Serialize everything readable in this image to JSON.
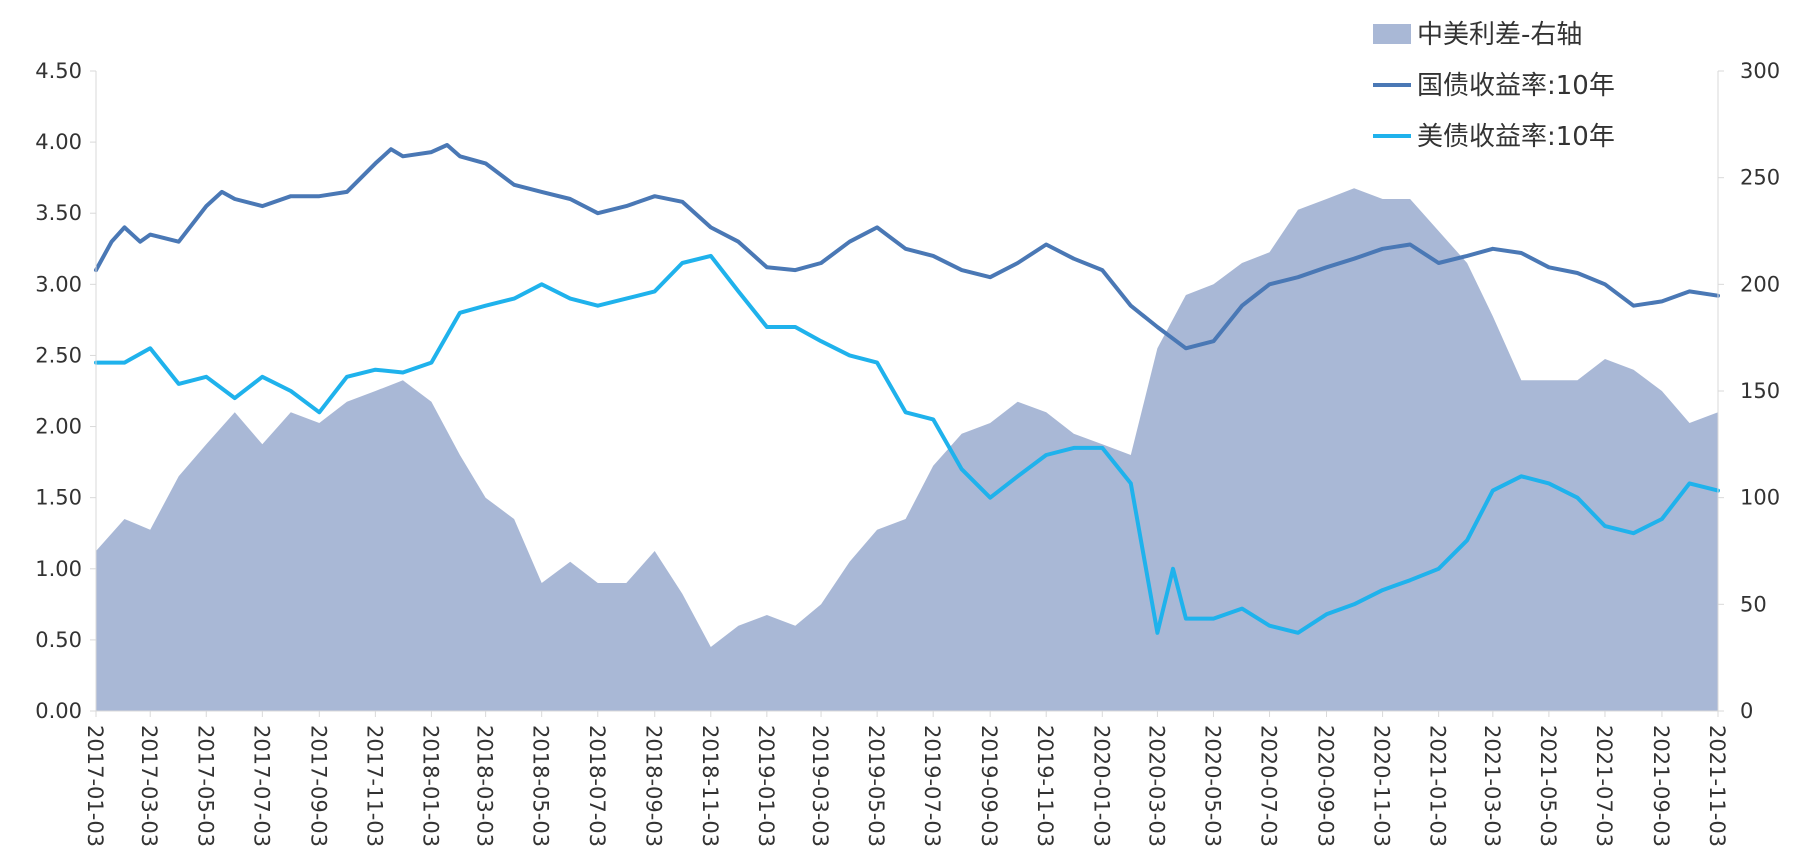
{
  "chart_data": {
    "type": "area+line",
    "legend": [
      {
        "key": "spread",
        "label": "中美利差-右轴",
        "kind": "area",
        "color": "#a9b8d6"
      },
      {
        "key": "cn10y",
        "label": "国债收益率:10年",
        "kind": "line",
        "color": "#4a78b5"
      },
      {
        "key": "us10y",
        "label": "美债收益率:10年",
        "kind": "line",
        "color": "#1fb2ec"
      }
    ],
    "legend_position": "top-right",
    "y_left": {
      "min": 0,
      "max": 4.5,
      "ticks": [
        "0.00",
        "0.50",
        "1.00",
        "1.50",
        "2.00",
        "2.50",
        "3.00",
        "3.50",
        "4.00",
        "4.50"
      ]
    },
    "y_right": {
      "min": 0,
      "max": 300,
      "ticks": [
        "0",
        "50",
        "100",
        "150",
        "200",
        "250",
        "300"
      ]
    },
    "x_labels": [
      "2017-01-03",
      "2017-03-03",
      "2017-05-03",
      "2017-07-03",
      "2017-09-03",
      "2017-11-03",
      "2018-01-03",
      "2018-03-03",
      "2018-05-03",
      "2018-07-03",
      "2018-09-03",
      "2018-11-03",
      "2019-01-03",
      "2019-03-03",
      "2019-05-03",
      "2019-07-03",
      "2019-09-03",
      "2019-11-03",
      "2020-01-03",
      "2020-03-03",
      "2020-05-03",
      "2020-07-03",
      "2020-09-03",
      "2020-11-03",
      "2021-01-03",
      "2021-03-03",
      "2021-05-03",
      "2021-07-03",
      "2021-09-03",
      "2021-11-03"
    ],
    "x_range": [
      "2017-01-03",
      "2021-11-03"
    ],
    "grid": false,
    "series": [
      {
        "name": "中美利差-右轴",
        "axis": "right",
        "points": [
          [
            "2017-01-03",
            75
          ],
          [
            "2017-02-03",
            90
          ],
          [
            "2017-03-03",
            85
          ],
          [
            "2017-04-03",
            110
          ],
          [
            "2017-05-03",
            125
          ],
          [
            "2017-06-03",
            140
          ],
          [
            "2017-07-03",
            125
          ],
          [
            "2017-08-03",
            140
          ],
          [
            "2017-09-03",
            135
          ],
          [
            "2017-10-03",
            145
          ],
          [
            "2017-11-03",
            150
          ],
          [
            "2017-12-03",
            155
          ],
          [
            "2018-01-03",
            145
          ],
          [
            "2018-02-03",
            120
          ],
          [
            "2018-03-03",
            100
          ],
          [
            "2018-04-03",
            90
          ],
          [
            "2018-05-03",
            60
          ],
          [
            "2018-06-03",
            70
          ],
          [
            "2018-07-03",
            60
          ],
          [
            "2018-08-03",
            60
          ],
          [
            "2018-09-03",
            75
          ],
          [
            "2018-10-03",
            55
          ],
          [
            "2018-11-03",
            30
          ],
          [
            "2018-12-03",
            40
          ],
          [
            "2019-01-03",
            45
          ],
          [
            "2019-02-03",
            40
          ],
          [
            "2019-03-03",
            50
          ],
          [
            "2019-04-03",
            70
          ],
          [
            "2019-05-03",
            85
          ],
          [
            "2019-06-03",
            90
          ],
          [
            "2019-07-03",
            115
          ],
          [
            "2019-08-03",
            130
          ],
          [
            "2019-09-03",
            135
          ],
          [
            "2019-10-03",
            145
          ],
          [
            "2019-11-03",
            140
          ],
          [
            "2019-12-03",
            130
          ],
          [
            "2020-01-03",
            125
          ],
          [
            "2020-02-03",
            120
          ],
          [
            "2020-03-03",
            170
          ],
          [
            "2020-04-03",
            195
          ],
          [
            "2020-05-03",
            200
          ],
          [
            "2020-06-03",
            210
          ],
          [
            "2020-07-03",
            215
          ],
          [
            "2020-08-03",
            235
          ],
          [
            "2020-09-03",
            240
          ],
          [
            "2020-10-03",
            245
          ],
          [
            "2020-11-03",
            240
          ],
          [
            "2020-12-03",
            240
          ],
          [
            "2021-01-03",
            225
          ],
          [
            "2021-02-03",
            210
          ],
          [
            "2021-03-03",
            185
          ],
          [
            "2021-04-03",
            155
          ],
          [
            "2021-05-03",
            155
          ],
          [
            "2021-06-03",
            155
          ],
          [
            "2021-07-03",
            165
          ],
          [
            "2021-08-03",
            160
          ],
          [
            "2021-09-03",
            150
          ],
          [
            "2021-10-03",
            135
          ],
          [
            "2021-11-03",
            140
          ]
        ]
      },
      {
        "name": "国债收益率:10年",
        "axis": "left",
        "points": [
          [
            "2017-01-03",
            3.1
          ],
          [
            "2017-01-20",
            3.3
          ],
          [
            "2017-02-03",
            3.4
          ],
          [
            "2017-02-20",
            3.3
          ],
          [
            "2017-03-03",
            3.35
          ],
          [
            "2017-04-03",
            3.3
          ],
          [
            "2017-05-03",
            3.55
          ],
          [
            "2017-05-20",
            3.65
          ],
          [
            "2017-06-03",
            3.6
          ],
          [
            "2017-07-03",
            3.55
          ],
          [
            "2017-08-03",
            3.62
          ],
          [
            "2017-09-03",
            3.62
          ],
          [
            "2017-10-03",
            3.65
          ],
          [
            "2017-11-03",
            3.85
          ],
          [
            "2017-11-20",
            3.95
          ],
          [
            "2017-12-03",
            3.9
          ],
          [
            "2018-01-03",
            3.93
          ],
          [
            "2018-01-20",
            3.98
          ],
          [
            "2018-02-03",
            3.9
          ],
          [
            "2018-03-03",
            3.85
          ],
          [
            "2018-04-03",
            3.7
          ],
          [
            "2018-05-03",
            3.65
          ],
          [
            "2018-06-03",
            3.6
          ],
          [
            "2018-07-03",
            3.5
          ],
          [
            "2018-08-03",
            3.55
          ],
          [
            "2018-09-03",
            3.62
          ],
          [
            "2018-10-03",
            3.58
          ],
          [
            "2018-11-03",
            3.4
          ],
          [
            "2018-12-03",
            3.3
          ],
          [
            "2019-01-03",
            3.12
          ],
          [
            "2019-02-03",
            3.1
          ],
          [
            "2019-03-03",
            3.15
          ],
          [
            "2019-04-03",
            3.3
          ],
          [
            "2019-05-03",
            3.4
          ],
          [
            "2019-06-03",
            3.25
          ],
          [
            "2019-07-03",
            3.2
          ],
          [
            "2019-08-03",
            3.1
          ],
          [
            "2019-09-03",
            3.05
          ],
          [
            "2019-10-03",
            3.15
          ],
          [
            "2019-11-03",
            3.28
          ],
          [
            "2019-12-03",
            3.18
          ],
          [
            "2020-01-03",
            3.1
          ],
          [
            "2020-02-03",
            2.85
          ],
          [
            "2020-03-03",
            2.7
          ],
          [
            "2020-04-03",
            2.55
          ],
          [
            "2020-05-03",
            2.6
          ],
          [
            "2020-06-03",
            2.85
          ],
          [
            "2020-07-03",
            3.0
          ],
          [
            "2020-08-03",
            3.05
          ],
          [
            "2020-09-03",
            3.12
          ],
          [
            "2020-10-03",
            3.18
          ],
          [
            "2020-11-03",
            3.25
          ],
          [
            "2020-12-03",
            3.28
          ],
          [
            "2021-01-03",
            3.15
          ],
          [
            "2021-02-03",
            3.2
          ],
          [
            "2021-03-03",
            3.25
          ],
          [
            "2021-04-03",
            3.22
          ],
          [
            "2021-05-03",
            3.12
          ],
          [
            "2021-06-03",
            3.08
          ],
          [
            "2021-07-03",
            3.0
          ],
          [
            "2021-08-03",
            2.85
          ],
          [
            "2021-09-03",
            2.88
          ],
          [
            "2021-10-03",
            2.95
          ],
          [
            "2021-11-03",
            2.92
          ]
        ]
      },
      {
        "name": "美债收益率:10年",
        "axis": "left",
        "points": [
          [
            "2017-01-03",
            2.45
          ],
          [
            "2017-02-03",
            2.45
          ],
          [
            "2017-03-03",
            2.55
          ],
          [
            "2017-04-03",
            2.3
          ],
          [
            "2017-05-03",
            2.35
          ],
          [
            "2017-06-03",
            2.2
          ],
          [
            "2017-07-03",
            2.35
          ],
          [
            "2017-08-03",
            2.25
          ],
          [
            "2017-09-03",
            2.1
          ],
          [
            "2017-10-03",
            2.35
          ],
          [
            "2017-11-03",
            2.4
          ],
          [
            "2017-12-03",
            2.38
          ],
          [
            "2018-01-03",
            2.45
          ],
          [
            "2018-02-03",
            2.8
          ],
          [
            "2018-03-03",
            2.85
          ],
          [
            "2018-04-03",
            2.9
          ],
          [
            "2018-05-03",
            3.0
          ],
          [
            "2018-06-03",
            2.9
          ],
          [
            "2018-07-03",
            2.85
          ],
          [
            "2018-08-03",
            2.9
          ],
          [
            "2018-09-03",
            2.95
          ],
          [
            "2018-10-03",
            3.15
          ],
          [
            "2018-11-03",
            3.2
          ],
          [
            "2018-12-03",
            2.95
          ],
          [
            "2019-01-03",
            2.7
          ],
          [
            "2019-02-03",
            2.7
          ],
          [
            "2019-03-03",
            2.6
          ],
          [
            "2019-04-03",
            2.5
          ],
          [
            "2019-05-03",
            2.45
          ],
          [
            "2019-06-03",
            2.1
          ],
          [
            "2019-07-03",
            2.05
          ],
          [
            "2019-08-03",
            1.7
          ],
          [
            "2019-09-03",
            1.5
          ],
          [
            "2019-10-03",
            1.65
          ],
          [
            "2019-11-03",
            1.8
          ],
          [
            "2019-12-03",
            1.85
          ],
          [
            "2020-01-03",
            1.85
          ],
          [
            "2020-02-03",
            1.6
          ],
          [
            "2020-03-03",
            0.55
          ],
          [
            "2020-03-20",
            1.0
          ],
          [
            "2020-04-03",
            0.65
          ],
          [
            "2020-05-03",
            0.65
          ],
          [
            "2020-06-03",
            0.72
          ],
          [
            "2020-07-03",
            0.6
          ],
          [
            "2020-08-03",
            0.55
          ],
          [
            "2020-09-03",
            0.68
          ],
          [
            "2020-10-03",
            0.75
          ],
          [
            "2020-11-03",
            0.85
          ],
          [
            "2020-12-03",
            0.92
          ],
          [
            "2021-01-03",
            1.0
          ],
          [
            "2021-02-03",
            1.2
          ],
          [
            "2021-03-03",
            1.55
          ],
          [
            "2021-04-03",
            1.65
          ],
          [
            "2021-05-03",
            1.6
          ],
          [
            "2021-06-03",
            1.5
          ],
          [
            "2021-07-03",
            1.3
          ],
          [
            "2021-08-03",
            1.25
          ],
          [
            "2021-09-03",
            1.35
          ],
          [
            "2021-10-03",
            1.6
          ],
          [
            "2021-11-03",
            1.55
          ]
        ]
      }
    ]
  }
}
